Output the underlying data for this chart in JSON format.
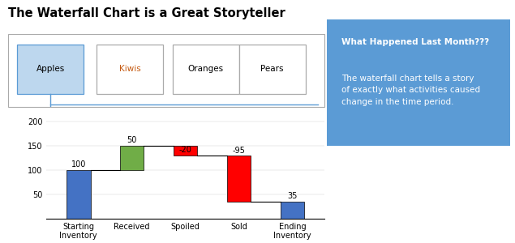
{
  "title": "The Waterfall Chart is a Great Storyteller",
  "categories": [
    "Starting\nInventory",
    "Received",
    "Spoiled",
    "Sold",
    "Ending\nInventory"
  ],
  "values": [
    100,
    50,
    -20,
    -95,
    35
  ],
  "bar_bottoms": [
    0,
    100,
    130,
    35,
    0
  ],
  "bar_colors": [
    "#4472C4",
    "#70AD47",
    "#FF0000",
    "#FF0000",
    "#4472C4"
  ],
  "bar_labels": [
    "100",
    "50",
    "-20",
    "-95",
    "35"
  ],
  "label_y_offsets": [
    103,
    153,
    133,
    132,
    38
  ],
  "ylim": [
    0,
    220
  ],
  "yticks": [
    50,
    100,
    150,
    200
  ],
  "tab_labels": [
    "Apples",
    "Kiwis",
    "Oranges",
    "Pears"
  ],
  "tab_colors": [
    "#BDD7EE",
    "#FFFFFF",
    "#FFFFFF",
    "#FFFFFF"
  ],
  "tab_border_colors": [
    "#5B9BD5",
    "#AAAAAA",
    "#AAAAAA",
    "#AAAAAA"
  ],
  "tab_text_colors": [
    "#000000",
    "#C55A11",
    "#000000",
    "#000000"
  ],
  "callout_title": "What Happened Last Month???",
  "callout_body": "The waterfall chart tells a story\nof exactly what activities caused\nchange in the time period.",
  "callout_color": "#5B9BD5",
  "connector_color": "#5B9BD5"
}
